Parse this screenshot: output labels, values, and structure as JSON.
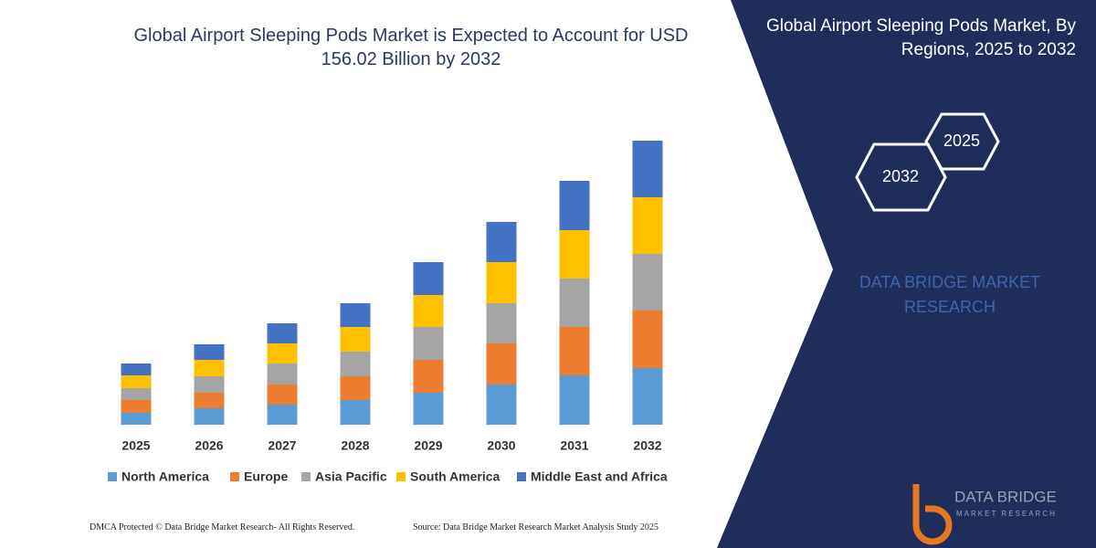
{
  "chart_data": {
    "type": "bar",
    "stacked": true,
    "title": "Global Airport Sleeping Pods Market is Expected to Account for USD 156.02 Billion by 2032",
    "categories": [
      "2025",
      "2026",
      "2027",
      "2028",
      "2029",
      "2030",
      "2031",
      "2032"
    ],
    "series": [
      {
        "name": "North America",
        "color": "#5b9bd5",
        "values": [
          6.5,
          9,
          11,
          13.5,
          17.5,
          22,
          27,
          31
        ]
      },
      {
        "name": "Europe",
        "color": "#ed7d31",
        "values": [
          7,
          8.5,
          11,
          13,
          18,
          22.5,
          26.5,
          31.5
        ]
      },
      {
        "name": "Asia Pacific",
        "color": "#a5a5a5",
        "values": [
          6.5,
          9,
          11.5,
          13.5,
          18,
          22,
          26.5,
          31
        ]
      },
      {
        "name": "South America",
        "color": "#ffc000",
        "values": [
          7,
          9,
          11,
          13.5,
          17.5,
          22.5,
          26.5,
          31
        ]
      },
      {
        "name": "Middle East and Africa",
        "color": "#4472c4",
        "values": [
          6.5,
          8.5,
          11,
          13,
          18,
          22,
          27,
          31
        ]
      }
    ]
  },
  "side_panel": {
    "title": "Global Airport Sleeping Pods Market, By Regions, 2025 to 2032",
    "hexagons": [
      "2025",
      "2032"
    ],
    "brand_text": "DATA BRIDGE MARKET RESEARCH"
  },
  "footer": {
    "dmca": "DMCA Protected © Data Bridge Market Research- All Rights Reserved.",
    "source": "Source: Data Bridge Market Research Market Analysis Study 2025"
  },
  "logo": {
    "name": "DATA BRIDGE",
    "tagline": "MARKET RESEARCH"
  }
}
